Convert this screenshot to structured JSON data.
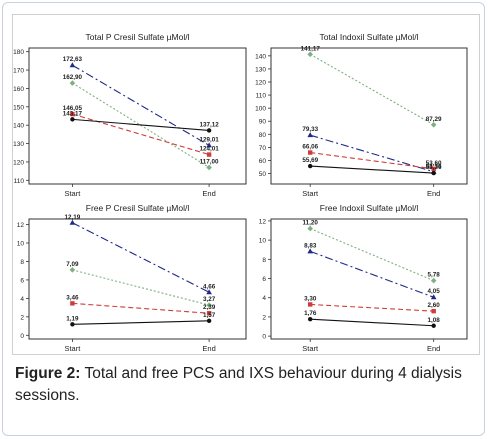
{
  "caption": {
    "label": "Figure 2:",
    "text": " Total and free PCS and IXS behaviour during 4 dialysis sessions."
  },
  "chart_data": [
    {
      "type": "line",
      "title": "Total P Cresil Sulfate  µMol/l",
      "categories": [
        "Start",
        "End"
      ],
      "ylim": [
        108,
        182
      ],
      "yticks": [
        "110",
        "120",
        "130",
        "140",
        "150",
        "160",
        "170",
        "180"
      ],
      "ytick_values": [
        110,
        120,
        130,
        140,
        150,
        160,
        170,
        180
      ],
      "grid": false,
      "series": [
        {
          "values": [
            172.63,
            129.01
          ],
          "color": "#1f2a8a",
          "dash": "8 3 2 3",
          "marker": "triangle",
          "labels": [
            "172,63",
            "129,01"
          ]
        },
        {
          "values": [
            162.9,
            117.0
          ],
          "color": "#7fb07f",
          "dash": "2 2",
          "marker": "diamond",
          "labels": [
            "162,90",
            "117,00"
          ]
        },
        {
          "values": [
            146.05,
            124.01
          ],
          "color": "#d13b3b",
          "dash": "5 3",
          "marker": "square",
          "labels": [
            "146,05",
            "124,01"
          ]
        },
        {
          "values": [
            143.17,
            137.12
          ],
          "color": "#111111",
          "dash": "",
          "marker": "circle",
          "labels": [
            "143,17",
            "137,12"
          ]
        }
      ]
    },
    {
      "type": "line",
      "title": "Total Indoxil Sulfate  µMol/l",
      "categories": [
        "Start",
        "End"
      ],
      "ylim": [
        42,
        146
      ],
      "yticks": [
        "50",
        "60",
        "70",
        "80",
        "90",
        "100",
        "110",
        "120",
        "130",
        "140"
      ],
      "ytick_values": [
        50,
        60,
        70,
        80,
        90,
        100,
        110,
        120,
        130,
        140
      ],
      "grid": false,
      "series": [
        {
          "values": [
            141.17,
            87.29
          ],
          "color": "#7fb07f",
          "dash": "2 2",
          "marker": "diamond",
          "labels": [
            "141,17",
            "87,29"
          ]
        },
        {
          "values": [
            79.33,
            51.36
          ],
          "color": "#1f2a8a",
          "dash": "8 3 2 3",
          "marker": "triangle",
          "labels": [
            "79,33",
            "51,36"
          ]
        },
        {
          "values": [
            66.06,
            53.6
          ],
          "color": "#d13b3b",
          "dash": "5 3",
          "marker": "square",
          "labels": [
            "66,06",
            "53,60"
          ]
        },
        {
          "values": [
            55.69,
            50.36
          ],
          "color": "#111111",
          "dash": "",
          "marker": "circle",
          "labels": [
            "55,69",
            "50,36"
          ]
        }
      ]
    },
    {
      "type": "line",
      "title": "Free P Cresil Sulfate µMol/l",
      "categories": [
        "Start",
        "End"
      ],
      "ylim": [
        -0.4,
        12.6
      ],
      "yticks": [
        "0",
        "2",
        "4",
        "6",
        "8",
        "10",
        "12"
      ],
      "ytick_values": [
        0,
        2,
        4,
        6,
        8,
        10,
        12
      ],
      "grid": false,
      "series": [
        {
          "values": [
            12.19,
            4.66
          ],
          "color": "#1f2a8a",
          "dash": "8 3 2 3",
          "marker": "triangle",
          "labels": [
            "12,19",
            "4,66"
          ]
        },
        {
          "values": [
            7.09,
            3.27
          ],
          "color": "#7fb07f",
          "dash": "2 2",
          "marker": "diamond",
          "labels": [
            "7,09",
            "3,27"
          ]
        },
        {
          "values": [
            3.46,
            2.39
          ],
          "color": "#d13b3b",
          "dash": "5 3",
          "marker": "square",
          "labels": [
            "3,46",
            "2,39"
          ]
        },
        {
          "values": [
            1.19,
            1.57
          ],
          "color": "#111111",
          "dash": "",
          "marker": "circle",
          "labels": [
            "1,19",
            "1,57"
          ]
        }
      ]
    },
    {
      "type": "line",
      "title": "Free Indoxil Sulfate  µMol/l",
      "categories": [
        "Start",
        "End"
      ],
      "ylim": [
        -0.3,
        12.2
      ],
      "yticks": [
        "0",
        "2",
        "4",
        "6",
        "8",
        "10",
        "12"
      ],
      "ytick_values": [
        0,
        2,
        4,
        6,
        8,
        10,
        12
      ],
      "grid": false,
      "series": [
        {
          "values": [
            11.2,
            5.78
          ],
          "color": "#7fb07f",
          "dash": "2 2",
          "marker": "diamond",
          "labels": [
            "11,20",
            "5,78"
          ]
        },
        {
          "values": [
            8.83,
            4.05
          ],
          "color": "#1f2a8a",
          "dash": "8 3 2 3",
          "marker": "triangle",
          "labels": [
            "8,83",
            "4,05"
          ]
        },
        {
          "values": [
            3.3,
            2.6
          ],
          "color": "#d13b3b",
          "dash": "5 3",
          "marker": "square",
          "labels": [
            "3,30",
            "2,60"
          ]
        },
        {
          "values": [
            1.76,
            1.08
          ],
          "color": "#111111",
          "dash": "",
          "marker": "circle",
          "labels": [
            "1,76",
            "1,08"
          ]
        }
      ]
    }
  ]
}
